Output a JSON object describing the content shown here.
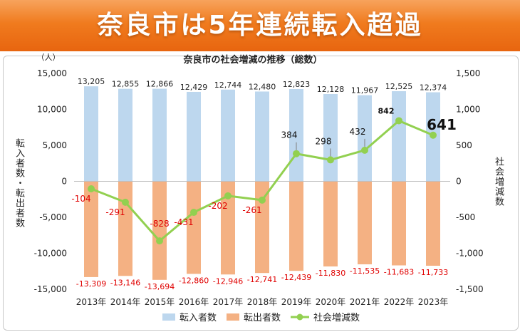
{
  "banner": {
    "title": "奈良市は5年連続転入超過"
  },
  "chart_data": {
    "type": "bar+line",
    "title": "奈良市の社会増減の推移（総数）",
    "unit_label": "（人）",
    "left_axis_label": "転入者数・転出者数",
    "right_axis_label": "社会増減数",
    "left_ylim": [
      -15000,
      15000
    ],
    "left_ticks": [
      "15,000",
      "10,000",
      "5,000",
      "0",
      "-5,000",
      "-10,000",
      "-15,000"
    ],
    "right_ylim": [
      -1500,
      1500
    ],
    "right_ticks": [
      "1,500",
      "1,000",
      "500",
      "0",
      "-500",
      "-1,000",
      "-1,500"
    ],
    "categories": [
      "2013年",
      "2014年",
      "2015年",
      "2016年",
      "2017年",
      "2018年",
      "2019年",
      "2020年",
      "2021年",
      "2022年",
      "2023年"
    ],
    "series": [
      {
        "name": "転入者数",
        "kind": "bar",
        "color": "#bdd7ee",
        "values": [
          13205,
          12855,
          12866,
          12429,
          12744,
          12480,
          12823,
          12128,
          11967,
          12525,
          12374
        ],
        "labels": [
          "13,205",
          "12,855",
          "12,866",
          "12,429",
          "12,744",
          "12,480",
          "12,823",
          "12,128",
          "11,967",
          "12,525",
          "12,374"
        ]
      },
      {
        "name": "転出者数",
        "kind": "bar",
        "color": "#f4b183",
        "values": [
          -13309,
          -13146,
          -13694,
          -12860,
          -12946,
          -12741,
          -12439,
          -11830,
          -11535,
          -11683,
          -11733
        ],
        "labels": [
          "-13,309",
          "-13,146",
          "-13,694",
          "-12,860",
          "-12,946",
          "-12,741",
          "-12,439",
          "-11,830",
          "-11,535",
          "-11,683",
          "-11,733"
        ]
      },
      {
        "name": "社会増減数",
        "kind": "line",
        "axis": "right",
        "color": "#92d050",
        "values": [
          -104,
          -291,
          -828,
          -431,
          -202,
          -261,
          384,
          298,
          432,
          842,
          641
        ],
        "labels": [
          "-104",
          "-291",
          "-828",
          "-431",
          "-202",
          "-261",
          "384",
          "298",
          "432",
          "842",
          "641"
        ]
      }
    ],
    "legend_position": "bottom",
    "grid": false
  }
}
